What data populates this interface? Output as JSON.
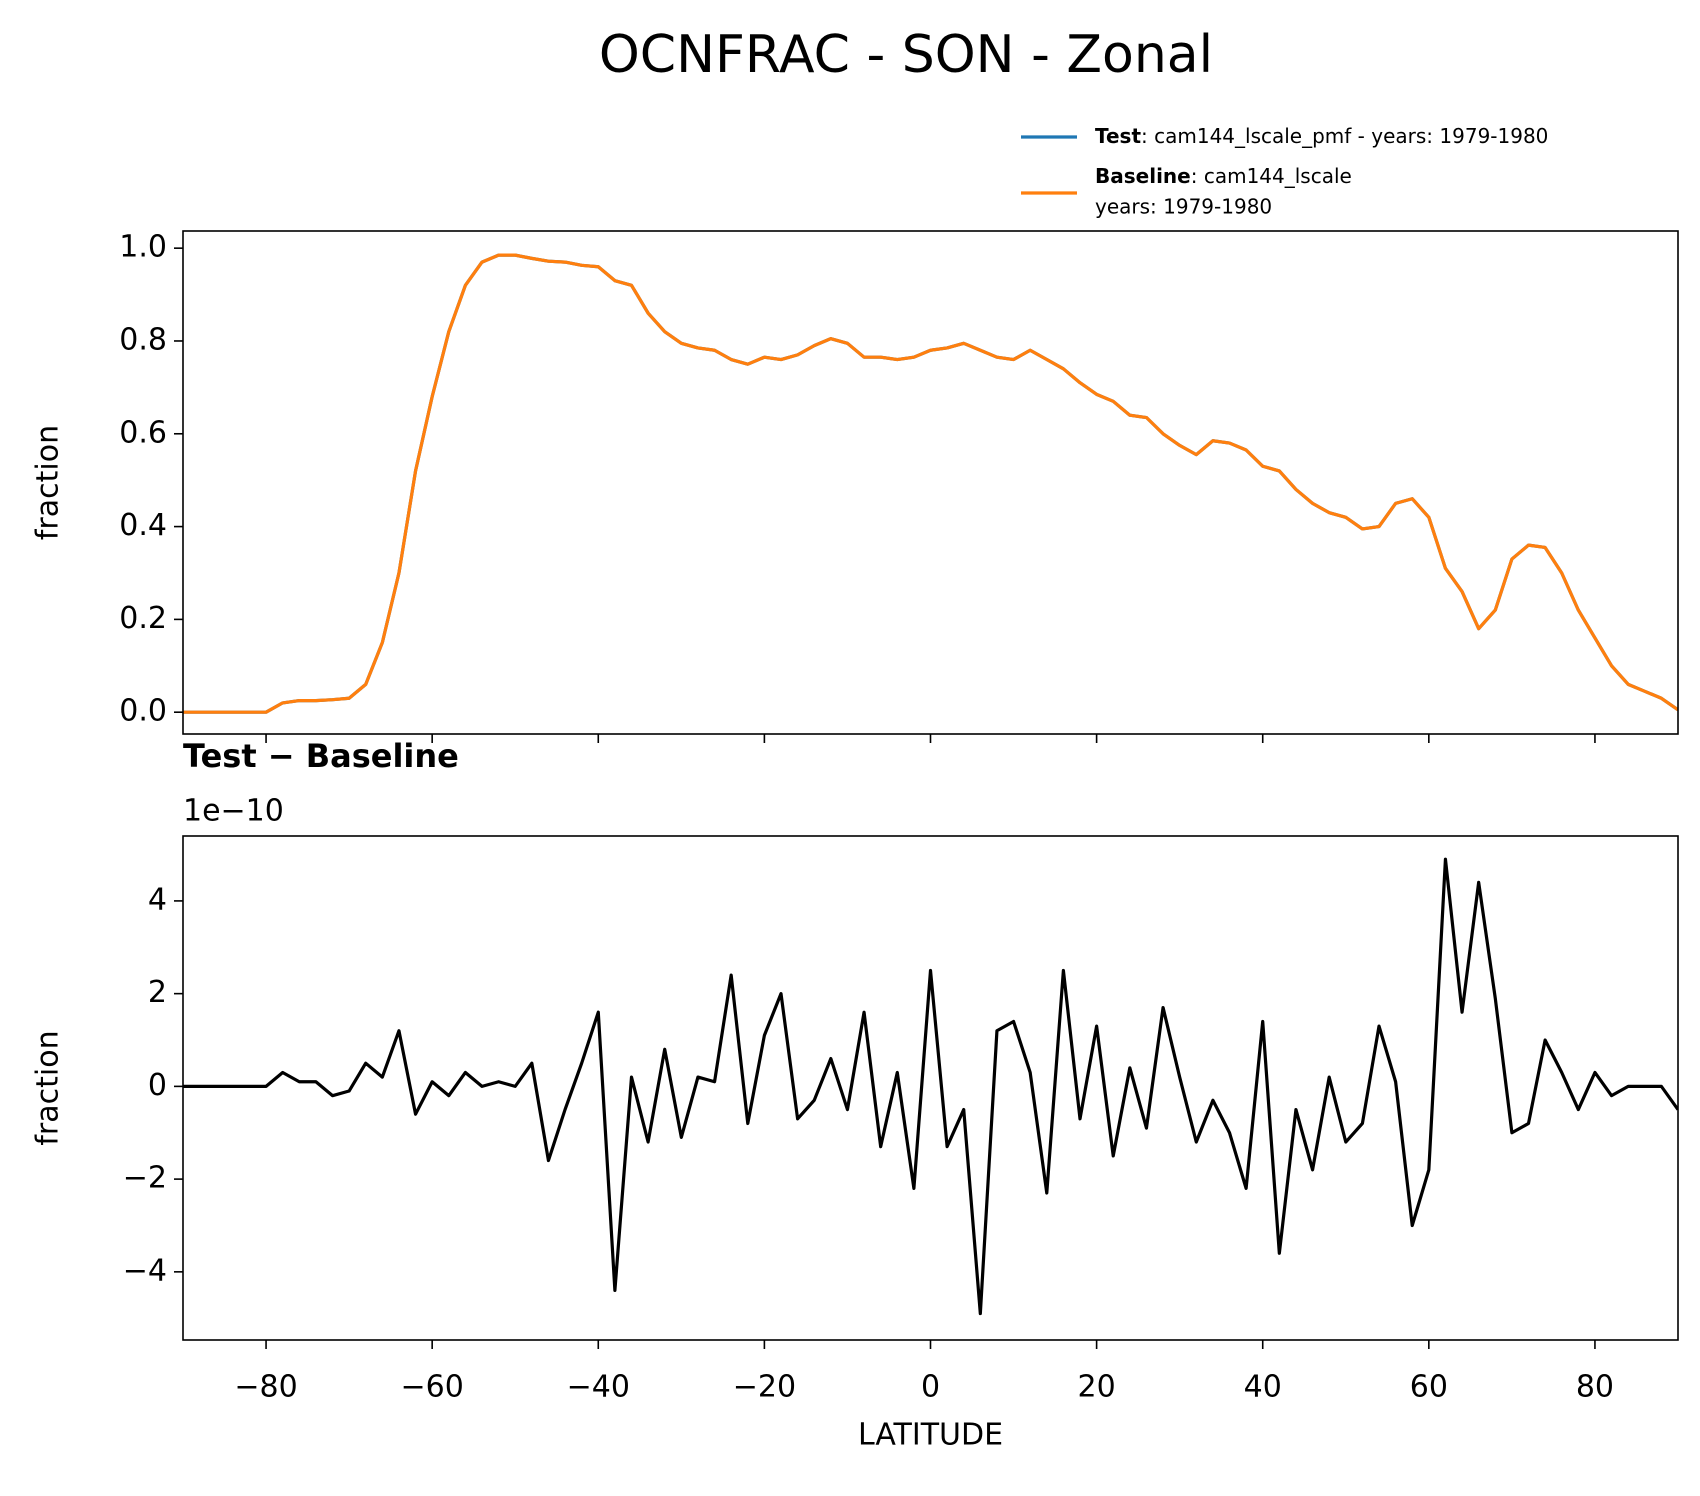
{
  "chart_data": [
    {
      "type": "line",
      "title": "OCNFRAC - SON - Zonal",
      "ylabel": "fraction",
      "x": [
        -90,
        -88,
        -86,
        -84,
        -82,
        -80,
        -78,
        -76,
        -74,
        -72,
        -70,
        -68,
        -66,
        -64,
        -62,
        -60,
        -58,
        -56,
        -54,
        -52,
        -50,
        -48,
        -46,
        -44,
        -42,
        -40,
        -38,
        -36,
        -34,
        -32,
        -30,
        -28,
        -26,
        -24,
        -22,
        -20,
        -18,
        -16,
        -14,
        -12,
        -10,
        -8,
        -6,
        -4,
        -2,
        0,
        2,
        4,
        6,
        8,
        10,
        12,
        14,
        16,
        18,
        20,
        22,
        24,
        26,
        28,
        30,
        32,
        34,
        36,
        38,
        40,
        42,
        44,
        46,
        48,
        50,
        52,
        54,
        56,
        58,
        60,
        62,
        64,
        66,
        68,
        70,
        72,
        74,
        76,
        78,
        80,
        82,
        84,
        86,
        88,
        90
      ],
      "series": [
        {
          "name": "Test",
          "description": [
            ": cam144_lscale_pmf - years: 1979-1980"
          ],
          "color": "#1f77b4",
          "values": [
            0,
            0,
            0,
            0,
            0,
            0,
            0.02,
            0.025,
            0.025,
            0.027,
            0.03,
            0.06,
            0.15,
            0.3,
            0.52,
            0.68,
            0.82,
            0.92,
            0.97,
            0.985,
            0.985,
            0.978,
            0.972,
            0.97,
            0.963,
            0.96,
            0.93,
            0.92,
            0.86,
            0.82,
            0.795,
            0.785,
            0.78,
            0.76,
            0.75,
            0.765,
            0.76,
            0.77,
            0.79,
            0.805,
            0.795,
            0.765,
            0.765,
            0.76,
            0.765,
            0.78,
            0.785,
            0.795,
            0.78,
            0.765,
            0.76,
            0.78,
            0.76,
            0.74,
            0.71,
            0.685,
            0.67,
            0.64,
            0.635,
            0.6,
            0.575,
            0.555,
            0.585,
            0.58,
            0.565,
            0.53,
            0.52,
            0.48,
            0.45,
            0.43,
            0.42,
            0.395,
            0.4,
            0.45,
            0.46,
            0.42,
            0.31,
            0.26,
            0.18,
            0.22,
            0.33,
            0.36,
            0.355,
            0.3,
            0.22,
            0.16,
            0.1,
            0.06,
            0.045,
            0.03,
            0.005
          ]
        },
        {
          "name": "Baseline",
          "description": [
            ": cam144_lscale",
            "years: 1979-1980"
          ],
          "color": "#ff7f0e",
          "values": [
            0,
            0,
            0,
            0,
            0,
            0,
            0.02,
            0.025,
            0.025,
            0.027,
            0.03,
            0.06,
            0.15,
            0.3,
            0.52,
            0.68,
            0.82,
            0.92,
            0.97,
            0.985,
            0.985,
            0.978,
            0.972,
            0.97,
            0.963,
            0.96,
            0.93,
            0.92,
            0.86,
            0.82,
            0.795,
            0.785,
            0.78,
            0.76,
            0.75,
            0.765,
            0.76,
            0.77,
            0.79,
            0.805,
            0.795,
            0.765,
            0.765,
            0.76,
            0.765,
            0.78,
            0.785,
            0.795,
            0.78,
            0.765,
            0.76,
            0.78,
            0.76,
            0.74,
            0.71,
            0.685,
            0.67,
            0.64,
            0.635,
            0.6,
            0.575,
            0.555,
            0.585,
            0.58,
            0.565,
            0.53,
            0.52,
            0.48,
            0.45,
            0.43,
            0.42,
            0.395,
            0.4,
            0.45,
            0.46,
            0.42,
            0.31,
            0.26,
            0.18,
            0.22,
            0.33,
            0.36,
            0.355,
            0.3,
            0.22,
            0.16,
            0.1,
            0.06,
            0.045,
            0.03,
            0.005
          ]
        }
      ],
      "xlim": [
        -90,
        90
      ],
      "xticks": [
        -80,
        -60,
        -40,
        -20,
        0,
        20,
        40,
        60,
        80
      ],
      "ylim": [
        -0.047,
        1.037
      ],
      "yticks": [
        {
          "value": 0,
          "label": "0.0"
        },
        0.2,
        0.4,
        0.6,
        0.8,
        {
          "value": 1,
          "label": "1.0"
        }
      ]
    },
    {
      "type": "line",
      "title": "Test − Baseline",
      "offset_label": "1e−10",
      "ylabel": "fraction",
      "xlabel": "LATITUDE",
      "x": [
        -90,
        -88,
        -86,
        -84,
        -82,
        -80,
        -78,
        -76,
        -74,
        -72,
        -70,
        -68,
        -66,
        -64,
        -62,
        -60,
        -58,
        -56,
        -54,
        -52,
        -50,
        -48,
        -46,
        -44,
        -42,
        -40,
        -38,
        -36,
        -34,
        -32,
        -30,
        -28,
        -26,
        -24,
        -22,
        -20,
        -18,
        -16,
        -14,
        -12,
        -10,
        -8,
        -6,
        -4,
        -2,
        0,
        2,
        4,
        6,
        8,
        10,
        12,
        14,
        16,
        18,
        20,
        22,
        24,
        26,
        28,
        30,
        32,
        34,
        36,
        38,
        40,
        42,
        44,
        46,
        48,
        50,
        52,
        54,
        56,
        58,
        60,
        62,
        64,
        66,
        68,
        70,
        72,
        74,
        76,
        78,
        80,
        82,
        84,
        86,
        88,
        90
      ],
      "series": [
        {
          "color": "#000000",
          "values": [
            0,
            0,
            0,
            0,
            0,
            0,
            0.3,
            0.1,
            0.1,
            -0.2,
            -0.1,
            0.5,
            0.2,
            1.2,
            -0.6,
            0.1,
            -0.2,
            0.3,
            0,
            0.1,
            0,
            0.5,
            -1.6,
            -0.5,
            0.5,
            1.6,
            -4.4,
            0.2,
            -1.2,
            0.8,
            -1.1,
            0.2,
            0.1,
            2.4,
            -0.8,
            1.1,
            2.0,
            -0.7,
            -0.3,
            0.6,
            -0.5,
            1.6,
            -1.3,
            0.3,
            -2.2,
            2.5,
            -1.3,
            -0.5,
            -4.9,
            1.2,
            1.4,
            0.3,
            -2.3,
            2.5,
            -0.7,
            1.3,
            -1.5,
            0.4,
            -0.9,
            1.7,
            0.2,
            -1.2,
            -0.3,
            -1.0,
            -2.2,
            1.4,
            -3.6,
            -0.5,
            -1.8,
            0.2,
            -1.2,
            -0.8,
            1.3,
            0.1,
            -3.0,
            -1.8,
            4.9,
            1.6,
            4.4,
            1.9,
            -1.0,
            -0.8,
            1.0,
            0.3,
            -0.5,
            0.3,
            -0.2,
            0,
            0,
            0,
            -0.5
          ]
        }
      ],
      "xlim": [
        -90,
        90
      ],
      "xticks": [
        {
          "value": -80,
          "label": "−80"
        },
        {
          "value": -60,
          "label": "−60"
        },
        {
          "value": -40,
          "label": "−40"
        },
        {
          "value": -20,
          "label": "−20"
        },
        0,
        20,
        40,
        60,
        80
      ],
      "ylim": [
        -5.47,
        5.4
      ],
      "yticks": [
        {
          "value": -4,
          "label": "−4"
        },
        {
          "value": -2,
          "label": "−2"
        },
        0,
        2,
        4
      ]
    }
  ]
}
